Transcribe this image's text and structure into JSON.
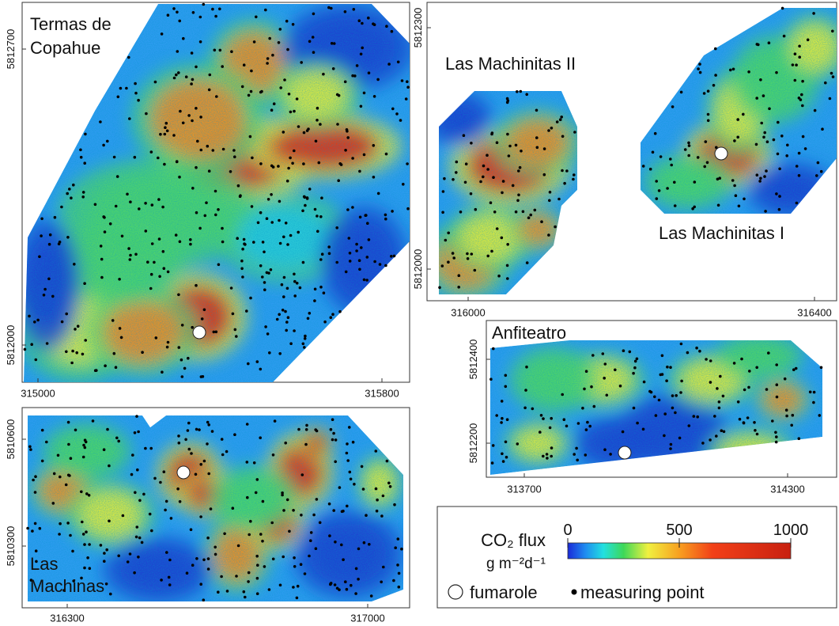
{
  "panels": [
    {
      "title": [
        "Termas de",
        "Copahue"
      ],
      "yticks": [
        5812700,
        5812000
      ],
      "xticks": [
        315000,
        315800
      ]
    },
    {
      "title": [
        "Las Machinitas II",
        "Las Machinitas I"
      ],
      "yticks": [
        5812300,
        5812000
      ],
      "xticks": [
        316000,
        316400
      ]
    },
    {
      "title": [
        "Las",
        "Machinas"
      ],
      "yticks": [
        5810600,
        5810300
      ],
      "xticks": [
        316300,
        317000
      ]
    },
    {
      "title": [
        "Anfiteatro"
      ],
      "yticks": [
        5812400,
        5812200
      ],
      "xticks": [
        313700,
        314300
      ]
    }
  ],
  "legend": {
    "title": "CO₂ flux",
    "unit": "g m⁻²d⁻¹",
    "ticks": [
      0,
      500,
      1000
    ],
    "fumarole": "fumarole",
    "point": "measuring point"
  }
}
